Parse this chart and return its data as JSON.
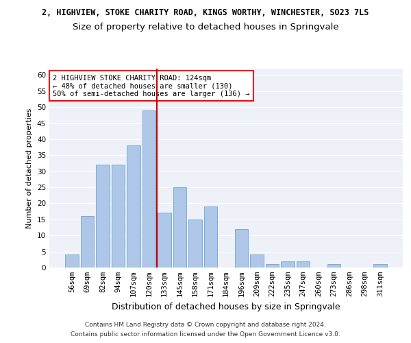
{
  "title1": "2, HIGHVIEW, STOKE CHARITY ROAD, KINGS WORTHY, WINCHESTER, SO23 7LS",
  "title2": "Size of property relative to detached houses in Springvale",
  "xlabel": "Distribution of detached houses by size in Springvale",
  "ylabel": "Number of detached properties",
  "bar_labels": [
    "56sqm",
    "69sqm",
    "82sqm",
    "94sqm",
    "107sqm",
    "120sqm",
    "133sqm",
    "145sqm",
    "158sqm",
    "171sqm",
    "184sqm",
    "196sqm",
    "209sqm",
    "222sqm",
    "235sqm",
    "247sqm",
    "260sqm",
    "273sqm",
    "286sqm",
    "298sqm",
    "311sqm"
  ],
  "bar_values": [
    4,
    16,
    32,
    32,
    38,
    49,
    17,
    25,
    15,
    19,
    0,
    12,
    4,
    1,
    2,
    2,
    0,
    1,
    0,
    0,
    1
  ],
  "bar_color": "#aec6e8",
  "bar_edge_color": "#7aadd4",
  "bg_color": "#eef2f8",
  "grid_color": "#ffffff",
  "ref_line_x": 5.5,
  "ref_line_color": "#cc0000",
  "annotation_line1": "2 HIGHVIEW STOKE CHARITY ROAD: 124sqm",
  "annotation_line2": "← 48% of detached houses are smaller (130)",
  "annotation_line3": "50% of semi-detached houses are larger (136) →",
  "ylim": [
    0,
    62
  ],
  "yticks": [
    0,
    5,
    10,
    15,
    20,
    25,
    30,
    35,
    40,
    45,
    50,
    55,
    60
  ],
  "footnote1": "Contains HM Land Registry data © Crown copyright and database right 2024.",
  "footnote2": "Contains public sector information licensed under the Open Government Licence v3.0.",
  "title1_fontsize": 8.5,
  "title2_fontsize": 9.5,
  "xlabel_fontsize": 9,
  "ylabel_fontsize": 8,
  "tick_fontsize": 7.5,
  "annotation_fontsize": 7.5,
  "footnote_fontsize": 6.5
}
